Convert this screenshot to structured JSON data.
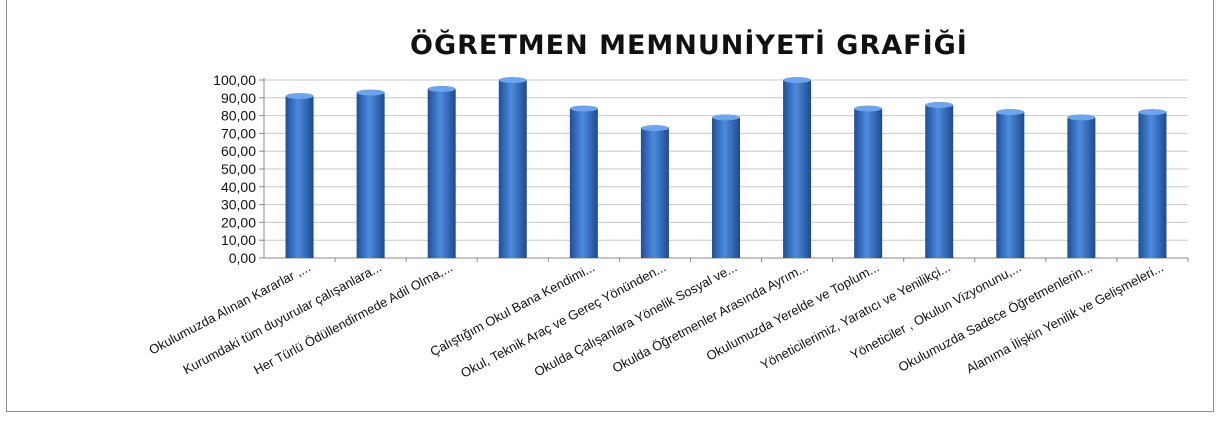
{
  "chart_data": {
    "type": "bar",
    "title": "ÖĞRETMEN MEMNUNİYETİ GRAFİĞİ",
    "xlabel": "",
    "ylabel": "",
    "ylim": [
      0,
      100
    ],
    "ytick_step": 10,
    "ytick_labels": [
      "0,00",
      "10,00",
      "20,00",
      "30,00",
      "40,00",
      "50,00",
      "60,00",
      "70,00",
      "80,00",
      "90,00",
      "100,00"
    ],
    "grid": true,
    "legend": "none",
    "bar_color": "#2e6bc0",
    "categories": [
      "Okulumuzda Alınan Kararlar ,...",
      "Kurumdaki tüm duyurular çalışanlara...",
      "Her Türlü Ödüllendirmede Adil Olma,...",
      "",
      "Çalıştığım Okul Bana Kendimi...",
      "Okul, Teknik Araç ve Gereç Yönünden...",
      "Okulda Çalışanlara Yönelik Sosyal ve...",
      "Okulda Öğretmenler Arasında Ayrım...",
      "Okulumuzda Yerelde ve Toplum...",
      "Yöneticilerimiz, Yaratıcı ve Yenilikçi...",
      "Yöneticiler , Okulun Vizyonunu,...",
      "Okulumuzda Sadece Öğretmenlerin...",
      "Alanıma İlişkin Yenilik ve Gelişmeleri..."
    ],
    "values": [
      91,
      93,
      95,
      100,
      84,
      73,
      79,
      100,
      84,
      86,
      82,
      79,
      82
    ]
  }
}
